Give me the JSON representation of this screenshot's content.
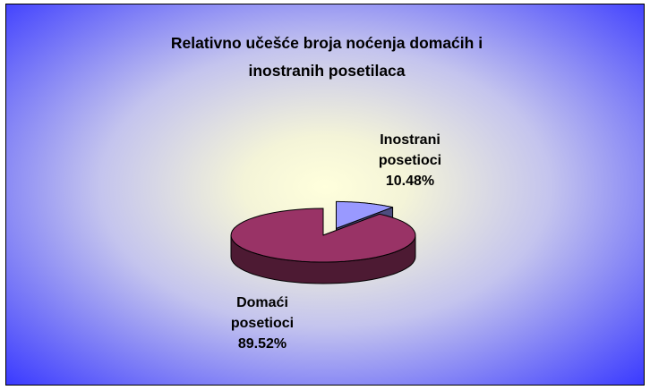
{
  "chart_data": {
    "type": "pie3d",
    "title": "Relativno učešće broja noćenja domaćih i inostranih posetilaca",
    "categories": [
      "Inostrani posetioci",
      "Domaći posetioci"
    ],
    "values": [
      10.48,
      89.52
    ],
    "value_labels": [
      "10.48%",
      "89.52%"
    ],
    "colors": [
      "#9999ff",
      "#993366"
    ],
    "exploded": [
      true,
      false
    ]
  }
}
